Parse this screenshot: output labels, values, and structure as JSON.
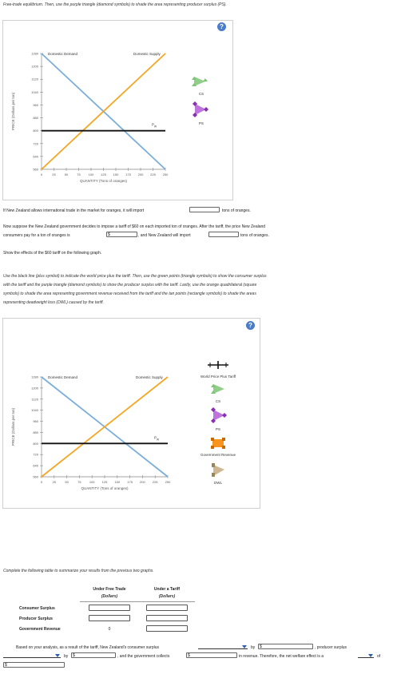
{
  "intro": "Free-trade equilibrium. Then, use the purple triangle (diamond symbols) to shade the area representing producer surplus (PS).",
  "graph1": {
    "y_axis_label": "PRICE (Dollars per ton)",
    "x_axis_label": "QUANTITY (Tons of oranges)",
    "y_ticks": [
      "1280",
      "1200",
      "1120",
      "1040",
      "960",
      "880",
      "800",
      "720",
      "640",
      "560"
    ],
    "x_ticks": [
      "0",
      "25",
      "50",
      "75",
      "100",
      "125",
      "150",
      "175",
      "200",
      "225",
      "250"
    ],
    "demand_label": "Domestic Demand",
    "supply_label": "Domestic Supply",
    "pw_label": "P",
    "pw_sub": "W",
    "legend": {
      "cs": "CS",
      "ps": "PS"
    }
  },
  "q_import_text": "If New Zealand allows international trade in the market for oranges, it will import",
  "q_import_suffix": "tons of oranges.",
  "tariff_text_1": "Now suppose the New Zealand government decides to impose a tariff of $60 on each imported ton of oranges. After the tariff, the price New Zealand",
  "tariff_text_2": "consumers pay for a ton of oranges is",
  "dollar_prefix": "$",
  "tariff_text_3": ", and New Zealand will import",
  "tariff_text_4": "tons of oranges.",
  "show_effects": "Show the effects of the $60 tariff on the following graph.",
  "instructions": [
    "Use the black line (plus symbol) to indicate the world price plus the tariff. Then, use the green points (triangle symbols) to show the consumer surplus",
    "with the tariff and the purple triangle (diamond symbols) to show the producer surplus with the tariff. Lastly, use the orange quadrilateral (square",
    "symbols) to shade the area representing government revenue received from the tariff and the tan points (rectangle symbols) to shade the areas",
    "representing deadweight loss (DWL) caused by the tariff."
  ],
  "graph2": {
    "legend": {
      "world_price_plus_tariff": "World Price Plus Tariff",
      "cs": "CS",
      "ps": "PS",
      "gov_revenue": "Government Revenue",
      "dwl": "DWL"
    }
  },
  "table_intro": "Complete the following table to summarize your results from the previous two graphs.",
  "table": {
    "col1_title": "Under Free Trade",
    "col1_unit": "(Dollars)",
    "col2_title": "Under a Tariff",
    "col2_unit": "(Dollars)",
    "rows": [
      "Consumer Surplus",
      "Producer Surplus",
      "Government Revenue"
    ],
    "gov_free_trade": "0"
  },
  "analysis": {
    "t1": "Based on your analysis, as a result of the tariff, New Zealand's consumer surplus",
    "t2": "by",
    "t3": ", producer surplus",
    "t4": "by",
    "t5": ", and the government collects",
    "t6": "in revenue. Therefore, the net welfare effect is a",
    "t7": "of"
  },
  "colors": {
    "demand": "#7aaedb",
    "supply": "#f5a623",
    "world_price": "#111111",
    "cs_green": "#7cc576",
    "ps_purple": "#b15cd6",
    "gov_orange": "#f7941d",
    "dwl_tan": "#c8b087",
    "help_blue": "#4a7cc8"
  }
}
